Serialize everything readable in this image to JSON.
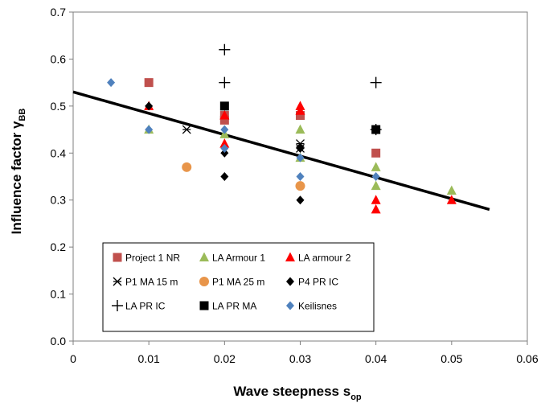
{
  "chart_data": {
    "type": "scatter",
    "xlabel": {
      "main": "Wave steepness s",
      "sub": "op"
    },
    "ylabel": {
      "main": "Influence factor γ",
      "sub": "BB"
    },
    "xlim": [
      0,
      0.06
    ],
    "ylim": [
      0,
      0.7
    ],
    "x_ticks": [
      0,
      0.01,
      0.02,
      0.03,
      0.04,
      0.05,
      0.06
    ],
    "x_tick_labels": [
      "0",
      "0.01",
      "0.02",
      "0.03",
      "0.04",
      "0.05",
      "0.06"
    ],
    "y_ticks": [
      0,
      0.1,
      0.2,
      0.3,
      0.4,
      0.5,
      0.6,
      0.7
    ],
    "y_tick_labels": [
      "0.0",
      "0.1",
      "0.2",
      "0.3",
      "0.4",
      "0.5",
      "0.6",
      "0.7"
    ],
    "grid": false,
    "legend_position": "bottom-left (inside plot area)",
    "trend_line": {
      "x": [
        0,
        0.055
      ],
      "y": [
        0.53,
        0.28
      ],
      "color": "#000000"
    },
    "series": [
      {
        "name": "Project 1 NR",
        "marker": "square",
        "color": "#c0504d",
        "points": [
          [
            0.01,
            0.55
          ],
          [
            0.02,
            0.48
          ],
          [
            0.02,
            0.47
          ],
          [
            0.03,
            0.48
          ],
          [
            0.04,
            0.4
          ]
        ]
      },
      {
        "name": "LA Armour 1",
        "marker": "triangle",
        "color": "#9bbb59",
        "points": [
          [
            0.01,
            0.45
          ],
          [
            0.02,
            0.44
          ],
          [
            0.03,
            0.45
          ],
          [
            0.03,
            0.39
          ],
          [
            0.04,
            0.37
          ],
          [
            0.04,
            0.33
          ],
          [
            0.05,
            0.32
          ]
        ]
      },
      {
        "name": "LA armour 2",
        "marker": "triangle",
        "color": "#ff0000",
        "points": [
          [
            0.01,
            0.5
          ],
          [
            0.02,
            0.48
          ],
          [
            0.02,
            0.42
          ],
          [
            0.03,
            0.5
          ],
          [
            0.03,
            0.49
          ],
          [
            0.04,
            0.3
          ],
          [
            0.04,
            0.28
          ],
          [
            0.05,
            0.3
          ]
        ]
      },
      {
        "name": "P1 MA 15 m",
        "marker": "asterisk",
        "color": "#000000",
        "points": [
          [
            0.015,
            0.45
          ],
          [
            0.03,
            0.41
          ],
          [
            0.03,
            0.42
          ]
        ]
      },
      {
        "name": "P1 MA 25 m",
        "marker": "circle",
        "color": "#e8954a",
        "points": [
          [
            0.015,
            0.37
          ],
          [
            0.03,
            0.33
          ]
        ]
      },
      {
        "name": "P4 PR IC",
        "marker": "diamond",
        "color": "#000000",
        "points": [
          [
            0.01,
            0.5
          ],
          [
            0.02,
            0.4
          ],
          [
            0.02,
            0.35
          ],
          [
            0.03,
            0.3
          ],
          [
            0.03,
            0.41
          ]
        ]
      },
      {
        "name": "LA PR IC",
        "marker": "plus",
        "color": "#000000",
        "points": [
          [
            0.02,
            0.62
          ],
          [
            0.02,
            0.55
          ],
          [
            0.04,
            0.55
          ],
          [
            0.04,
            0.45
          ]
        ]
      },
      {
        "name": "LA PR MA",
        "marker": "square",
        "color": "#000000",
        "points": [
          [
            0.02,
            0.5
          ],
          [
            0.04,
            0.45
          ]
        ]
      },
      {
        "name": "Keilisnes",
        "marker": "diamond",
        "color": "#4f81bd",
        "points": [
          [
            0.005,
            0.55
          ],
          [
            0.01,
            0.45
          ],
          [
            0.02,
            0.45
          ],
          [
            0.02,
            0.41
          ],
          [
            0.03,
            0.39
          ],
          [
            0.03,
            0.35
          ],
          [
            0.04,
            0.35
          ]
        ]
      }
    ]
  }
}
